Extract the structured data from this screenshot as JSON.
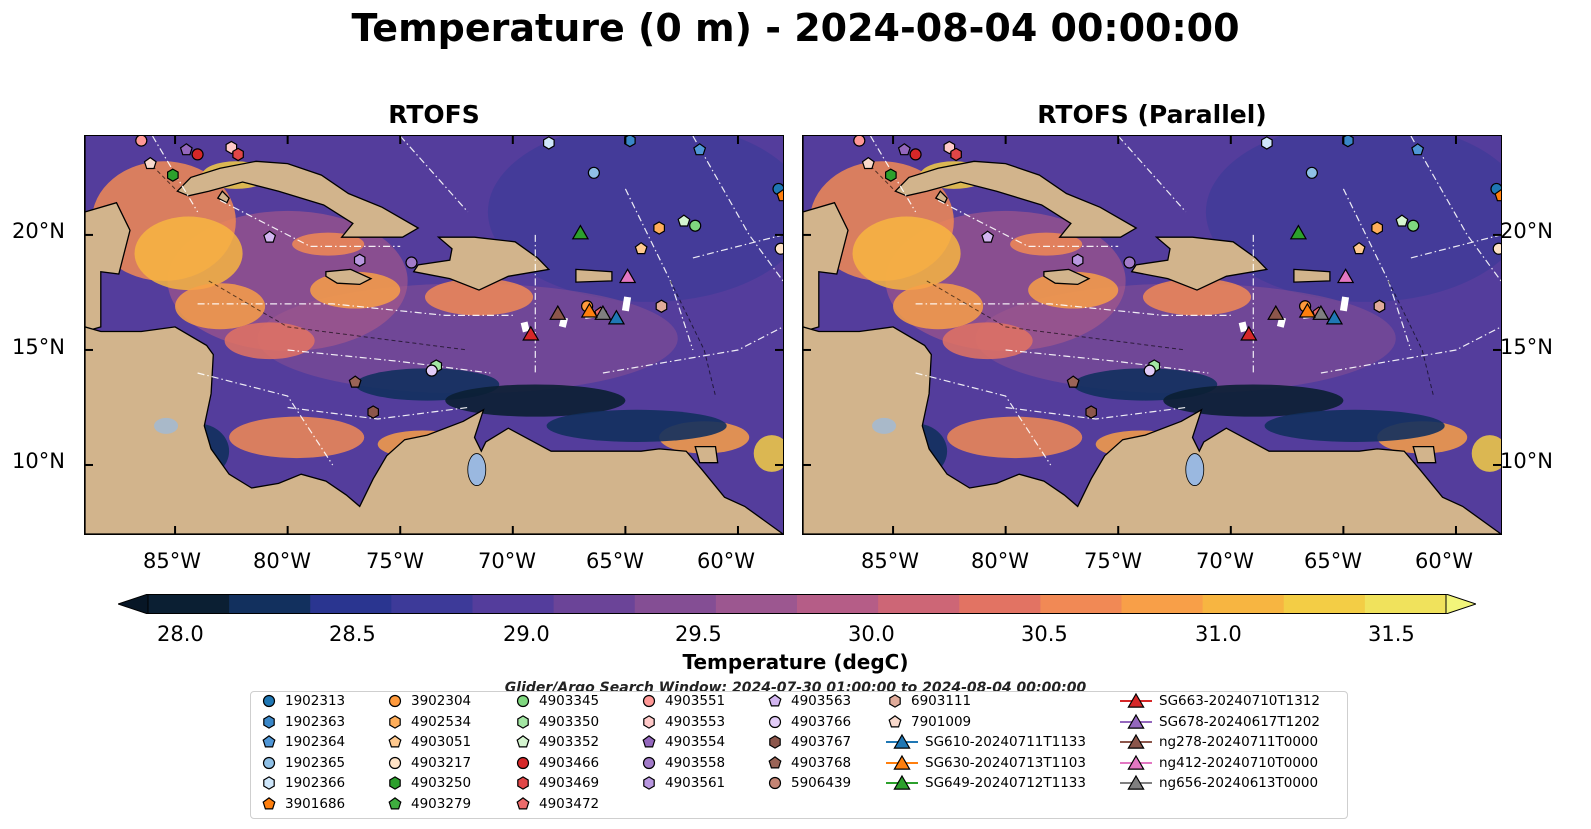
{
  "title": "Temperature (0 m) - 2024-08-04 00:00:00",
  "panels": [
    {
      "title": "RTOFS"
    },
    {
      "title": "RTOFS (Parallel)"
    }
  ],
  "map": {
    "lon_range": [
      -89,
      -58
    ],
    "lat_range": [
      7,
      24.3
    ],
    "lat_ticks": [
      "20°N",
      "15°N",
      "10°N"
    ],
    "lon_ticks": [
      "85°W",
      "80°W",
      "75°W",
      "70°W",
      "65°W",
      "60°W"
    ],
    "land_color": "#d2b48c"
  },
  "colorbar": {
    "label": "Temperature (degC)",
    "ticks": [
      "28.0",
      "28.5",
      "29.0",
      "29.5",
      "30.0",
      "30.5",
      "31.0",
      "31.5"
    ],
    "range": [
      27.75,
      31.75
    ],
    "colors": [
      "#0b1f33",
      "#12305e",
      "#2a3590",
      "#3d3a99",
      "#543d9c",
      "#6b4498",
      "#844e94",
      "#9c5790",
      "#b55d87",
      "#cd6676",
      "#e27363",
      "#f18955",
      "#f89f48",
      "#f7b541",
      "#f3cd45",
      "#f0e25c"
    ]
  },
  "search_window": "Glider/Argo Search Window: 2024-07-30 01:00:00 to 2024-08-04 00:00:00",
  "legend": [
    {
      "label": "1902313",
      "shape": "circle",
      "color": "#1f77b4"
    },
    {
      "label": "1902363",
      "shape": "hexagon",
      "color": "#3a87c8"
    },
    {
      "label": "1902364",
      "shape": "pentagon",
      "color": "#4f96d6"
    },
    {
      "label": "1902365",
      "shape": "circle",
      "color": "#8fc0e6"
    },
    {
      "label": "1902366",
      "shape": "hexagon",
      "color": "#cfe7fb"
    },
    {
      "label": "3901686",
      "shape": "pentagon",
      "color": "#ff7f0e"
    },
    {
      "label": "3902304",
      "shape": "circle",
      "color": "#ff9a3c"
    },
    {
      "label": "4902534",
      "shape": "hexagon",
      "color": "#ffae5a"
    },
    {
      "label": "4903051",
      "shape": "pentagon",
      "color": "#ffc98f"
    },
    {
      "label": "4903217",
      "shape": "circle",
      "color": "#ffe3c6"
    },
    {
      "label": "4903250",
      "shape": "hexagon",
      "color": "#2ca02c"
    },
    {
      "label": "4903279",
      "shape": "pentagon",
      "color": "#3fae3f"
    },
    {
      "label": "4903345",
      "shape": "circle",
      "color": "#7fd77f"
    },
    {
      "label": "4903350",
      "shape": "hexagon",
      "color": "#a3e6a3"
    },
    {
      "label": "4903352",
      "shape": "pentagon",
      "color": "#d5f5d0"
    },
    {
      "label": "4903466",
      "shape": "circle",
      "color": "#d62728"
    },
    {
      "label": "4903469",
      "shape": "hexagon",
      "color": "#e04647"
    },
    {
      "label": "4903472",
      "shape": "pentagon",
      "color": "#ec6b6b"
    },
    {
      "label": "4903551",
      "shape": "circle",
      "color": "#ff9896"
    },
    {
      "label": "4903553",
      "shape": "hexagon",
      "color": "#ffc9c8"
    },
    {
      "label": "4903554",
      "shape": "pentagon",
      "color": "#9467bd"
    },
    {
      "label": "4903558",
      "shape": "circle",
      "color": "#a27bc9"
    },
    {
      "label": "4903561",
      "shape": "hexagon",
      "color": "#b997e0"
    },
    {
      "label": "4903563",
      "shape": "pentagon",
      "color": "#d2b5f0"
    },
    {
      "label": "4903766",
      "shape": "circle",
      "color": "#e2ccf8"
    },
    {
      "label": "4903767",
      "shape": "hexagon",
      "color": "#8c564b"
    },
    {
      "label": "4903768",
      "shape": "pentagon",
      "color": "#9a6457"
    },
    {
      "label": "5906439",
      "shape": "circle",
      "color": "#c48474"
    },
    {
      "label": "6903111",
      "shape": "hexagon",
      "color": "#e0ab9a"
    },
    {
      "label": "7901009",
      "shape": "pentagon",
      "color": "#f8d9cc"
    },
    {
      "label": "SG610-20240711T1133",
      "shape": "triangle-line",
      "color": "#1f77b4"
    },
    {
      "label": "SG630-20240713T1103",
      "shape": "triangle-line",
      "color": "#ff7f0e"
    },
    {
      "label": "SG649-20240712T1133",
      "shape": "triangle-line",
      "color": "#2ca02c"
    },
    {
      "label": "SG663-20240710T1312",
      "shape": "triangle-line",
      "color": "#d62728"
    },
    {
      "label": "SG678-20240617T1202",
      "shape": "triangle-line",
      "color": "#9467bd"
    },
    {
      "label": "ng278-20240711T0000",
      "shape": "triangle-line",
      "color": "#8c564b"
    },
    {
      "label": "ng412-20240710T0000",
      "shape": "triangle-line",
      "color": "#e377c2"
    },
    {
      "label": "ng656-20240613T0000",
      "shape": "triangle-line",
      "color": "#7f7f7f"
    }
  ],
  "markers": [
    {
      "lon": -86.5,
      "lat": 24.1,
      "legend": 18
    },
    {
      "lon": -84.5,
      "lat": 23.7,
      "legend": 20
    },
    {
      "lon": -84.0,
      "lat": 23.5,
      "legend": 15
    },
    {
      "lon": -82.5,
      "lat": 23.8,
      "legend": 19
    },
    {
      "lon": -82.2,
      "lat": 23.5,
      "legend": 16
    },
    {
      "lon": -86.1,
      "lat": 23.1,
      "legend": 29
    },
    {
      "lon": -85.1,
      "lat": 22.6,
      "legend": 10
    },
    {
      "lon": -80.8,
      "lat": 19.9,
      "legend": 23
    },
    {
      "lon": -76.8,
      "lat": 18.9,
      "legend": 22
    },
    {
      "lon": -74.5,
      "lat": 18.8,
      "legend": 21
    },
    {
      "lon": -68.4,
      "lat": 24.0,
      "legend": 4
    },
    {
      "lon": -64.8,
      "lat": 24.1,
      "legend": 1
    },
    {
      "lon": -61.7,
      "lat": 23.7,
      "legend": 2
    },
    {
      "lon": -66.4,
      "lat": 22.7,
      "legend": 3
    },
    {
      "lon": -58.2,
      "lat": 22.0,
      "legend": 0
    },
    {
      "lon": -58.0,
      "lat": 21.7,
      "legend": 5
    },
    {
      "lon": -63.5,
      "lat": 20.3,
      "legend": 7
    },
    {
      "lon": -62.4,
      "lat": 20.6,
      "legend": 14
    },
    {
      "lon": -61.9,
      "lat": 20.4,
      "legend": 12
    },
    {
      "lon": -64.3,
      "lat": 19.4,
      "legend": 8
    },
    {
      "lon": -58.1,
      "lat": 19.4,
      "legend": 9
    },
    {
      "lon": -73.4,
      "lat": 14.3,
      "legend": 13
    },
    {
      "lon": -73.6,
      "lat": 14.1,
      "legend": 24
    },
    {
      "lon": -77.0,
      "lat": 13.6,
      "legend": 26
    },
    {
      "lon": -76.2,
      "lat": 12.3,
      "legend": 25
    },
    {
      "lon": -66.7,
      "lat": 16.9,
      "legend": 6
    },
    {
      "lon": -63.4,
      "lat": 16.9,
      "legend": 28
    },
    {
      "lon": -66.1,
      "lat": 16.6,
      "legend": 17
    },
    {
      "lon": -67.0,
      "lat": 20.1,
      "legend": 32
    },
    {
      "lon": -64.9,
      "lat": 18.2,
      "legend": 36
    },
    {
      "lon": -68.0,
      "lat": 16.6,
      "legend": 35
    },
    {
      "lon": -66.0,
      "lat": 16.6,
      "legend": 37
    },
    {
      "lon": -65.4,
      "lat": 16.4,
      "legend": 30
    },
    {
      "lon": -66.6,
      "lat": 16.7,
      "legend": 31
    },
    {
      "lon": -69.2,
      "lat": 15.7,
      "legend": 33
    }
  ]
}
